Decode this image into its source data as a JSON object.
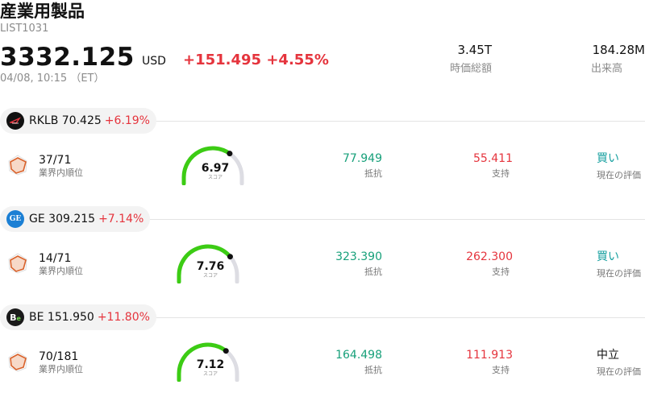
{
  "header": {
    "title": "産業用製品",
    "code": "LIST1031",
    "price": "3332.125",
    "currency": "USD",
    "change": "+151.495 +4.55%",
    "timestamp": "04/08, 10:15 （ET）",
    "stats": [
      {
        "value": "3.45T",
        "label": "時価総額"
      },
      {
        "value": "184.28M",
        "label": "出来高"
      }
    ]
  },
  "colors": {
    "up": "#e5343d",
    "resistance": "#17a07a",
    "support": "#e5343d",
    "gauge_fill": "#3ccc14",
    "gauge_track": "#dddde3"
  },
  "stocks": [
    {
      "symbol": "RKLB",
      "price": "70.425",
      "change": "+6.19%",
      "logo_icon": "rocket-lab-logo",
      "rank": "37/71",
      "rank_label": "業界内順位",
      "score": "6.97",
      "score_fraction": 0.697,
      "score_label": "スコア",
      "resistance": "77.949",
      "resistance_label": "抵抗",
      "support": "55.411",
      "support_label": "支持",
      "evaluation": "買い",
      "evaluation_color": "#17a0a0",
      "evaluation_label": "現在の評価"
    },
    {
      "symbol": "GE",
      "price": "309.215",
      "change": "+7.14%",
      "logo_icon": "ge-logo",
      "rank": "14/71",
      "rank_label": "業界内順位",
      "score": "7.76",
      "score_fraction": 0.776,
      "score_label": "スコア",
      "resistance": "323.390",
      "resistance_label": "抵抗",
      "support": "262.300",
      "support_label": "支持",
      "evaluation": "買い",
      "evaluation_color": "#17a0a0",
      "evaluation_label": "現在の評価"
    },
    {
      "symbol": "BE",
      "price": "151.950",
      "change": "+11.80%",
      "logo_icon": "bloom-energy-logo",
      "rank": "70/181",
      "rank_label": "業界内順位",
      "score": "7.12",
      "score_fraction": 0.712,
      "score_label": "スコア",
      "resistance": "164.498",
      "resistance_label": "抵抗",
      "support": "111.913",
      "support_label": "支持",
      "evaluation": "中立",
      "evaluation_color": "#111111",
      "evaluation_label": "現在の評価"
    }
  ]
}
